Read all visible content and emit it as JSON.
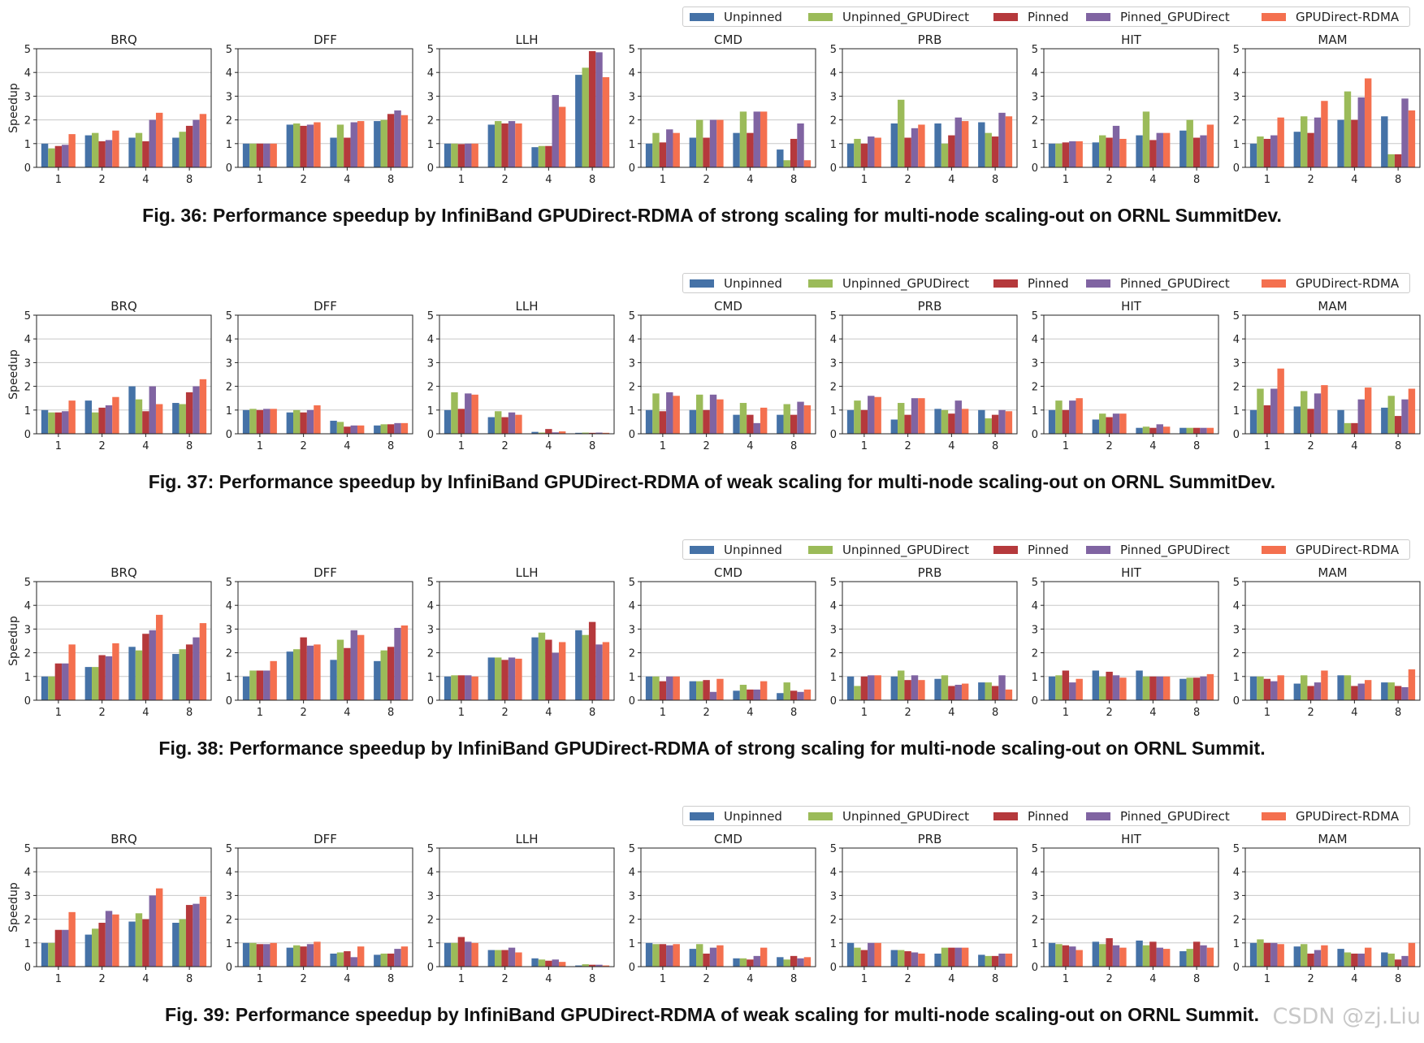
{
  "legend_colors": [
    "#4572a7",
    "#9bbb59",
    "#b5393c",
    "#8064a2",
    "#f4704f"
  ],
  "watermark": "CSDN @zj.Liu",
  "chart_data": [
    {
      "type": "bar",
      "caption": "Fig. 36: Performance speedup by InfiniBand GPUDirect-RDMA of strong scaling for multi-node scaling-out on ORNL SummitDev.",
      "ylabel": "Speedup",
      "ylim": [
        0,
        5
      ],
      "yticks": [
        "0",
        "1",
        "2",
        "3",
        "4",
        "5"
      ],
      "categories": [
        "1",
        "2",
        "4",
        "8"
      ],
      "legend": [
        "Unpinned",
        "Unpinned_GPUDirect",
        "Pinned",
        "Pinned_GPUDirect",
        "GPUDirect-RDMA"
      ],
      "panels": [
        {
          "title": "BRQ",
          "series": [
            [
              1.0,
              1.35,
              1.25,
              1.25
            ],
            [
              0.8,
              1.45,
              1.45,
              1.5
            ],
            [
              0.9,
              1.1,
              1.1,
              1.75
            ],
            [
              0.95,
              1.15,
              2.0,
              2.0
            ],
            [
              1.4,
              1.55,
              2.3,
              2.25
            ]
          ]
        },
        {
          "title": "DFF",
          "series": [
            [
              1.0,
              1.8,
              1.25,
              1.95
            ],
            [
              1.0,
              1.85,
              1.8,
              2.0
            ],
            [
              1.0,
              1.75,
              1.25,
              2.25
            ],
            [
              1.0,
              1.8,
              1.9,
              2.4
            ],
            [
              1.0,
              1.9,
              1.95,
              2.2
            ]
          ]
        },
        {
          "title": "LLH",
          "series": [
            [
              1.0,
              1.8,
              0.85,
              3.9
            ],
            [
              1.0,
              1.95,
              0.9,
              4.2
            ],
            [
              0.98,
              1.85,
              0.9,
              4.9
            ],
            [
              1.0,
              1.95,
              3.05,
              4.85
            ],
            [
              1.0,
              1.85,
              2.55,
              3.8
            ]
          ]
        },
        {
          "title": "CMD",
          "series": [
            [
              1.0,
              1.25,
              1.45,
              0.75
            ],
            [
              1.45,
              2.0,
              2.35,
              0.3
            ],
            [
              1.05,
              1.25,
              1.45,
              1.2
            ],
            [
              1.6,
              2.0,
              2.35,
              1.85
            ],
            [
              1.45,
              2.0,
              2.35,
              0.3
            ]
          ]
        },
        {
          "title": "PRB",
          "series": [
            [
              1.0,
              1.85,
              1.85,
              1.9
            ],
            [
              1.2,
              2.85,
              1.0,
              1.45
            ],
            [
              1.0,
              1.25,
              1.35,
              1.3
            ],
            [
              1.3,
              1.65,
              2.1,
              2.3
            ],
            [
              1.25,
              1.8,
              1.95,
              2.15
            ]
          ]
        },
        {
          "title": "HIT",
          "series": [
            [
              1.0,
              1.05,
              1.35,
              1.55
            ],
            [
              1.0,
              1.35,
              2.35,
              2.0
            ],
            [
              1.05,
              1.25,
              1.15,
              1.25
            ],
            [
              1.1,
              1.75,
              1.45,
              1.35
            ],
            [
              1.1,
              1.2,
              1.45,
              1.8
            ]
          ]
        },
        {
          "title": "MAM",
          "series": [
            [
              1.0,
              1.5,
              2.0,
              2.15
            ],
            [
              1.3,
              2.15,
              3.2,
              0.55
            ],
            [
              1.2,
              1.45,
              2.0,
              0.55
            ],
            [
              1.35,
              2.1,
              2.95,
              2.9
            ],
            [
              2.1,
              2.8,
              3.75,
              2.4
            ]
          ]
        }
      ]
    },
    {
      "type": "bar",
      "caption": "Fig. 37: Performance speedup by InfiniBand GPUDirect-RDMA of weak scaling for multi-node scaling-out on ORNL SummitDev.",
      "ylabel": "Speedup",
      "ylim": [
        0,
        5
      ],
      "yticks": [
        "0",
        "1",
        "2",
        "3",
        "4",
        "5"
      ],
      "categories": [
        "1",
        "2",
        "4",
        "8"
      ],
      "legend": [
        "Unpinned",
        "Unpinned_GPUDirect",
        "Pinned",
        "Pinned_GPUDirect",
        "GPUDirect-RDMA"
      ],
      "panels": [
        {
          "title": "BRQ",
          "series": [
            [
              1.0,
              1.4,
              2.0,
              1.3
            ],
            [
              0.9,
              0.9,
              1.45,
              1.25
            ],
            [
              0.9,
              1.1,
              0.95,
              1.75
            ],
            [
              0.95,
              1.2,
              2.0,
              2.0
            ],
            [
              1.4,
              1.55,
              1.25,
              2.3
            ]
          ]
        },
        {
          "title": "DFF",
          "series": [
            [
              1.0,
              0.9,
              0.55,
              0.35
            ],
            [
              1.05,
              1.0,
              0.5,
              0.4
            ],
            [
              1.0,
              0.9,
              0.3,
              0.4
            ],
            [
              1.05,
              1.0,
              0.35,
              0.45
            ],
            [
              1.05,
              1.2,
              0.35,
              0.45
            ]
          ]
        },
        {
          "title": "LLH",
          "series": [
            [
              1.0,
              0.7,
              0.08,
              0.04
            ],
            [
              1.75,
              0.95,
              0.05,
              0.05
            ],
            [
              1.05,
              0.7,
              0.2,
              0.04
            ],
            [
              1.7,
              0.9,
              0.06,
              0.05
            ],
            [
              1.65,
              0.8,
              0.1,
              0.04
            ]
          ]
        },
        {
          "title": "CMD",
          "series": [
            [
              1.0,
              1.0,
              0.8,
              0.8
            ],
            [
              1.7,
              1.65,
              1.3,
              1.25
            ],
            [
              0.95,
              1.0,
              0.8,
              0.8
            ],
            [
              1.75,
              1.65,
              0.45,
              1.35
            ],
            [
              1.6,
              1.45,
              1.1,
              1.2
            ]
          ]
        },
        {
          "title": "PRB",
          "series": [
            [
              1.0,
              0.6,
              1.05,
              1.0
            ],
            [
              1.4,
              1.3,
              1.0,
              0.65
            ],
            [
              1.0,
              0.8,
              0.85,
              0.8
            ],
            [
              1.6,
              1.5,
              1.4,
              1.0
            ],
            [
              1.55,
              1.5,
              1.05,
              0.95
            ]
          ]
        },
        {
          "title": "HIT",
          "series": [
            [
              1.0,
              0.6,
              0.25,
              0.25
            ],
            [
              1.4,
              0.85,
              0.3,
              0.25
            ],
            [
              1.0,
              0.7,
              0.25,
              0.25
            ],
            [
              1.4,
              0.85,
              0.4,
              0.25
            ],
            [
              1.5,
              0.85,
              0.3,
              0.25
            ]
          ]
        },
        {
          "title": "MAM",
          "series": [
            [
              1.0,
              1.15,
              1.0,
              1.1
            ],
            [
              1.9,
              1.8,
              0.45,
              1.6
            ],
            [
              1.2,
              1.05,
              0.45,
              0.75
            ],
            [
              1.9,
              1.7,
              1.45,
              1.45
            ],
            [
              2.75,
              2.05,
              1.95,
              1.9
            ]
          ]
        }
      ]
    },
    {
      "type": "bar",
      "caption": "Fig. 38: Performance speedup by InfiniBand GPUDirect-RDMA of strong scaling for multi-node scaling-out on ORNL Summit.",
      "ylabel": "Speedup",
      "ylim": [
        0,
        5
      ],
      "yticks": [
        "0",
        "1",
        "2",
        "3",
        "4",
        "5"
      ],
      "categories": [
        "1",
        "2",
        "4",
        "8"
      ],
      "legend": [
        "Unpinned",
        "Unpinned_GPUDirect",
        "Pinned",
        "Pinned_GPUDirect",
        "GPUDirect-RDMA"
      ],
      "panels": [
        {
          "title": "BRQ",
          "series": [
            [
              1.0,
              1.4,
              2.25,
              1.95
            ],
            [
              1.0,
              1.4,
              2.1,
              2.15
            ],
            [
              1.55,
              1.9,
              2.8,
              2.35
            ],
            [
              1.55,
              1.85,
              2.95,
              2.65
            ],
            [
              2.35,
              2.4,
              3.6,
              3.25
            ]
          ]
        },
        {
          "title": "DFF",
          "series": [
            [
              1.0,
              2.05,
              1.7,
              1.65
            ],
            [
              1.25,
              2.15,
              2.55,
              2.1
            ],
            [
              1.25,
              2.65,
              2.2,
              2.25
            ],
            [
              1.25,
              2.3,
              2.95,
              3.05
            ],
            [
              1.65,
              2.35,
              2.75,
              3.15
            ]
          ]
        },
        {
          "title": "LLH",
          "series": [
            [
              1.0,
              1.8,
              2.65,
              2.95
            ],
            [
              1.05,
              1.8,
              2.85,
              2.75
            ],
            [
              1.05,
              1.7,
              2.55,
              3.3
            ],
            [
              1.05,
              1.8,
              2.0,
              2.35
            ],
            [
              1.0,
              1.75,
              2.45,
              2.45
            ]
          ]
        },
        {
          "title": "CMD",
          "series": [
            [
              1.0,
              0.8,
              0.4,
              0.3
            ],
            [
              1.0,
              0.8,
              0.65,
              0.75
            ],
            [
              0.8,
              0.85,
              0.45,
              0.4
            ],
            [
              1.0,
              0.35,
              0.45,
              0.35
            ],
            [
              1.0,
              0.9,
              0.8,
              0.45
            ]
          ]
        },
        {
          "title": "PRB",
          "series": [
            [
              1.0,
              1.0,
              0.9,
              0.75
            ],
            [
              0.6,
              1.25,
              1.05,
              0.75
            ],
            [
              1.0,
              0.85,
              0.6,
              0.6
            ],
            [
              1.05,
              1.05,
              0.65,
              1.05
            ],
            [
              1.05,
              0.85,
              0.7,
              0.45
            ]
          ]
        },
        {
          "title": "HIT",
          "series": [
            [
              1.0,
              1.25,
              1.25,
              0.9
            ],
            [
              1.05,
              1.0,
              1.0,
              0.95
            ],
            [
              1.25,
              1.2,
              1.0,
              0.95
            ],
            [
              0.75,
              1.05,
              1.0,
              1.0
            ],
            [
              0.9,
              0.95,
              1.0,
              1.1
            ]
          ]
        },
        {
          "title": "MAM",
          "series": [
            [
              1.0,
              0.7,
              1.05,
              0.75
            ],
            [
              1.0,
              1.05,
              1.05,
              0.75
            ],
            [
              0.9,
              0.6,
              0.6,
              0.6
            ],
            [
              0.8,
              0.75,
              0.7,
              0.55
            ],
            [
              1.05,
              1.25,
              0.85,
              1.3
            ]
          ]
        }
      ]
    },
    {
      "type": "bar",
      "caption": "Fig. 39: Performance speedup by InfiniBand GPUDirect-RDMA of weak scaling for multi-node scaling-out on ORNL Summit.",
      "ylabel": "Speedup",
      "ylim": [
        0,
        5
      ],
      "yticks": [
        "0",
        "1",
        "2",
        "3",
        "4",
        "5"
      ],
      "categories": [
        "1",
        "2",
        "4",
        "8"
      ],
      "legend": [
        "Unpinned",
        "Unpinned_GPUDirect",
        "Pinned",
        "Pinned_GPUDirect",
        "GPUDirect-RDMA"
      ],
      "panels": [
        {
          "title": "BRQ",
          "series": [
            [
              1.0,
              1.35,
              1.9,
              1.85
            ],
            [
              1.0,
              1.6,
              2.25,
              2.0
            ],
            [
              1.55,
              1.85,
              2.0,
              2.6
            ],
            [
              1.55,
              2.35,
              3.0,
              2.65
            ],
            [
              2.3,
              2.2,
              3.3,
              2.95
            ]
          ]
        },
        {
          "title": "DFF",
          "series": [
            [
              1.0,
              0.8,
              0.55,
              0.5
            ],
            [
              1.0,
              0.9,
              0.6,
              0.55
            ],
            [
              0.95,
              0.85,
              0.65,
              0.55
            ],
            [
              0.95,
              0.95,
              0.4,
              0.75
            ],
            [
              1.0,
              1.05,
              0.85,
              0.85
            ]
          ]
        },
        {
          "title": "LLH",
          "series": [
            [
              1.0,
              0.7,
              0.35,
              0.05
            ],
            [
              1.0,
              0.7,
              0.3,
              0.1
            ],
            [
              1.25,
              0.7,
              0.25,
              0.08
            ],
            [
              1.05,
              0.8,
              0.3,
              0.08
            ],
            [
              1.0,
              0.6,
              0.2,
              0.05
            ]
          ]
        },
        {
          "title": "CMD",
          "series": [
            [
              1.0,
              0.75,
              0.35,
              0.4
            ],
            [
              0.95,
              0.95,
              0.35,
              0.3
            ],
            [
              0.95,
              0.55,
              0.3,
              0.45
            ],
            [
              0.9,
              0.8,
              0.45,
              0.35
            ],
            [
              0.95,
              0.9,
              0.8,
              0.4
            ]
          ]
        },
        {
          "title": "PRB",
          "series": [
            [
              1.0,
              0.7,
              0.55,
              0.5
            ],
            [
              0.8,
              0.7,
              0.8,
              0.45
            ],
            [
              0.7,
              0.65,
              0.8,
              0.45
            ],
            [
              1.0,
              0.6,
              0.8,
              0.55
            ],
            [
              1.0,
              0.55,
              0.8,
              0.55
            ]
          ]
        },
        {
          "title": "HIT",
          "series": [
            [
              1.0,
              1.05,
              1.1,
              0.65
            ],
            [
              0.95,
              0.95,
              0.9,
              0.75
            ],
            [
              0.9,
              1.2,
              1.05,
              1.05
            ],
            [
              0.85,
              0.9,
              0.8,
              0.9
            ],
            [
              0.7,
              0.8,
              0.75,
              0.8
            ]
          ]
        },
        {
          "title": "MAM",
          "series": [
            [
              1.0,
              0.85,
              0.75,
              0.6
            ],
            [
              1.15,
              0.95,
              0.6,
              0.55
            ],
            [
              1.0,
              0.55,
              0.55,
              0.3
            ],
            [
              1.0,
              0.7,
              0.55,
              0.45
            ],
            [
              0.95,
              0.9,
              0.8,
              1.0
            ]
          ]
        }
      ]
    }
  ]
}
